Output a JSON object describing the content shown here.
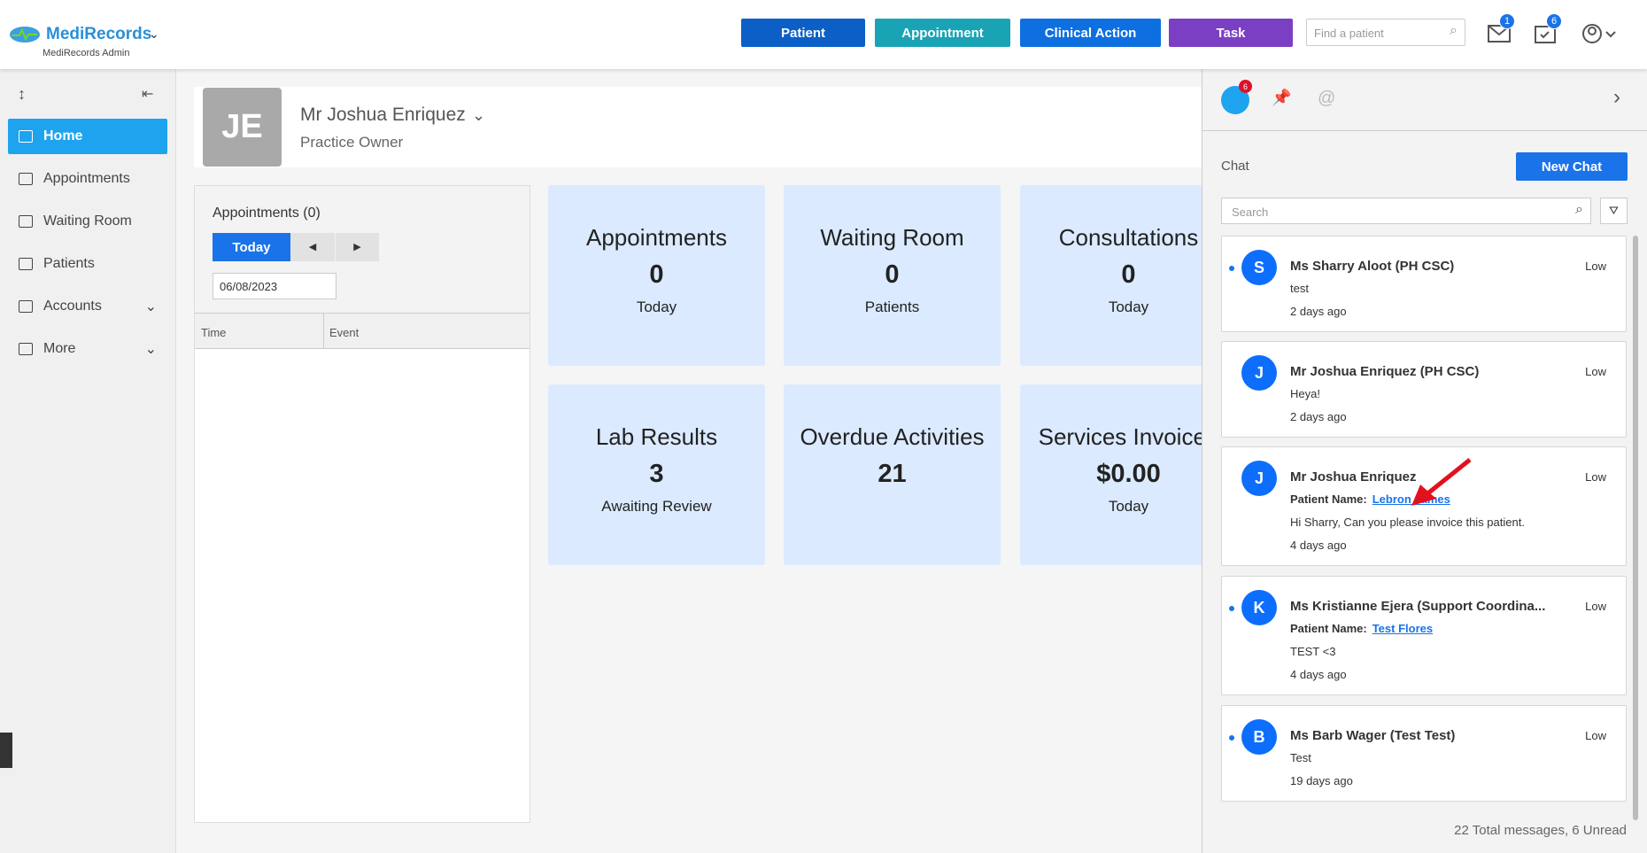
{
  "header": {
    "brand": "MediRecords",
    "subtitle": "MediRecords Admin",
    "buttons": [
      "Patient",
      "Appointment",
      "Clinical Action",
      "Task"
    ],
    "search_placeholder": "Find a patient",
    "mail_badge": "1",
    "tasks_badge": "6"
  },
  "sidebar": {
    "items": [
      "Home",
      "Appointments",
      "Waiting Room",
      "Patients",
      "Accounts",
      "More"
    ]
  },
  "profile": {
    "initials": "JE",
    "name": "Mr Joshua Enriquez",
    "role": "Practice Owner"
  },
  "appointments": {
    "title": "Appointments (0)",
    "today": "Today",
    "date": "06/08/2023",
    "columns": [
      "Time",
      "Event"
    ]
  },
  "tiles": [
    {
      "title": "Appointments",
      "value": "0",
      "sub": "Today"
    },
    {
      "title": "Waiting Room",
      "value": "0",
      "sub": "Patients"
    },
    {
      "title": "Consultations",
      "value": "0",
      "sub": "Today"
    },
    {
      "title": "Lab Results",
      "value": "3",
      "sub": "Awaiting Review"
    },
    {
      "title": "Overdue Activities",
      "value": "21"
    },
    {
      "title": "Services Invoiced",
      "value": "$0.00",
      "sub": "Today"
    }
  ],
  "chat": {
    "badge": "6",
    "title": "Chat",
    "new_chat": "New Chat",
    "search_placeholder": "Search",
    "messages": [
      {
        "initial": "S",
        "name": "Ms Sharry Aloot (PH CSC)",
        "priority": "Low",
        "text": "test",
        "time": "2 days ago",
        "unread": true
      },
      {
        "initial": "J",
        "name": "Mr Joshua Enriquez (PH CSC)",
        "priority": "Low",
        "text": "Heya!",
        "time": "2 days ago",
        "unread": false
      },
      {
        "initial": "J",
        "name": "Mr Joshua Enriquez",
        "priority": "Low",
        "patient_label": "Patient Name:",
        "patient": "Lebron James",
        "text": "Hi Sharry, Can you please invoice this patient.",
        "time": "4 days ago",
        "unread": false
      },
      {
        "initial": "K",
        "name": "Ms Kristianne Ejera (Support Coordina...",
        "priority": "Low",
        "patient_label": "Patient Name:",
        "patient": "Test Flores",
        "text": "TEST <3",
        "time": "4 days ago",
        "unread": true
      },
      {
        "initial": "B",
        "name": "Ms Barb Wager (Test Test)",
        "priority": "Low",
        "text": "Test",
        "time": "19 days ago",
        "unread": true
      }
    ],
    "footer": "22 Total messages, 6 Unread"
  }
}
